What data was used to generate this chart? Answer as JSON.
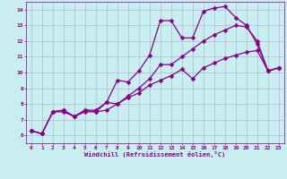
{
  "xlabel": "Windchill (Refroidissement éolien,°C)",
  "xlim": [
    -0.5,
    23.5
  ],
  "ylim": [
    5.5,
    14.5
  ],
  "xticks": [
    0,
    1,
    2,
    3,
    4,
    5,
    6,
    7,
    8,
    9,
    10,
    11,
    12,
    13,
    14,
    15,
    16,
    17,
    18,
    19,
    20,
    21,
    22,
    23
  ],
  "yticks": [
    6,
    7,
    8,
    9,
    10,
    11,
    12,
    13,
    14
  ],
  "bg_color": "#c8eef0",
  "line_color": "#880088",
  "grid_color": "#b0b8d8",
  "line1_y": [
    6.3,
    6.1,
    7.5,
    7.6,
    7.2,
    7.6,
    7.6,
    8.1,
    9.5,
    9.4,
    10.1,
    11.1,
    13.3,
    13.3,
    12.2,
    12.2,
    13.9,
    14.1,
    14.2,
    13.5,
    13.0,
    11.8,
    10.1,
    10.3
  ],
  "line2_y": [
    6.3,
    6.1,
    7.5,
    7.5,
    7.2,
    7.6,
    7.5,
    8.1,
    8.0,
    8.5,
    9.0,
    9.6,
    10.5,
    10.5,
    11.0,
    11.5,
    12.0,
    12.4,
    12.7,
    13.0,
    12.9,
    12.0,
    10.1,
    10.3
  ],
  "line3_y": [
    6.3,
    6.1,
    7.5,
    7.6,
    7.2,
    7.5,
    7.5,
    7.6,
    8.0,
    8.4,
    8.7,
    9.2,
    9.5,
    9.8,
    10.2,
    9.6,
    10.3,
    10.6,
    10.9,
    11.1,
    11.3,
    11.4,
    10.1,
    10.3
  ],
  "markersize": 2.5,
  "linewidth": 0.9
}
